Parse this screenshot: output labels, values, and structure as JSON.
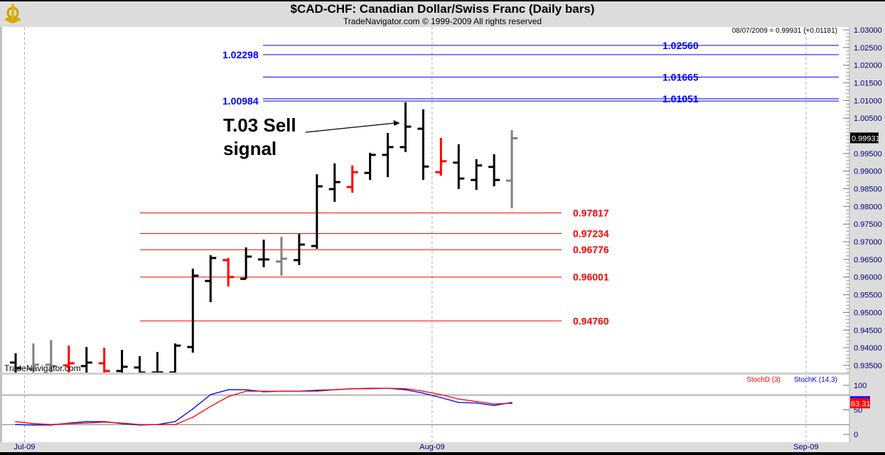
{
  "header": {
    "title": "$CAD-CHF:  Canadian Dollar/Swiss Franc  (Daily bars)",
    "subtitle": "TradeNavigator.com © 1999-2009 All rights reserved",
    "watermark": "TradeNavigator.com",
    "logo": "TradeNavigator"
  },
  "chart_data": [
    {
      "type": "ohlc",
      "readout": "08/07/2009 = 0.99931 (+0.01181)",
      "last_price_label": "0.99931",
      "ylim": [
        0.933,
        1.031
      ],
      "y_ticks": [
        "1.03000",
        "1.02500",
        "1.02000",
        "1.01500",
        "1.01000",
        "1.00500",
        "0.99500",
        "0.99000",
        "0.98500",
        "0.98000",
        "0.97500",
        "0.97000",
        "0.96500",
        "0.96000",
        "0.95500",
        "0.95000",
        "0.94500",
        "0.94000",
        "0.93500"
      ],
      "x_ticks": [
        {
          "label": "Jul-09",
          "at": 0.5
        },
        {
          "label": "Aug-09",
          "at": 23.5
        },
        {
          "label": "Sep-09",
          "at": 44.6
        }
      ],
      "bar_colors": {
        "black": "#000000",
        "red": "#ff0000",
        "gray": "#808080"
      },
      "bars": [
        {
          "o": 0.9358,
          "h": 0.9384,
          "l": 0.932,
          "c": 0.9342,
          "color": "black"
        },
        {
          "o": 0.934,
          "h": 0.9412,
          "l": 0.932,
          "c": 0.9352,
          "color": "gray"
        },
        {
          "o": 0.9352,
          "h": 0.9422,
          "l": 0.932,
          "c": 0.9348,
          "color": "gray"
        },
        {
          "o": 0.935,
          "h": 0.9406,
          "l": 0.932,
          "c": 0.9356,
          "color": "red"
        },
        {
          "o": 0.9348,
          "h": 0.9402,
          "l": 0.932,
          "c": 0.9358,
          "color": "black"
        },
        {
          "o": 0.9356,
          "h": 0.94,
          "l": 0.932,
          "c": 0.9334,
          "color": "red"
        },
        {
          "o": 0.9334,
          "h": 0.9394,
          "l": 0.932,
          "c": 0.9346,
          "color": "black"
        },
        {
          "o": 0.9344,
          "h": 0.9376,
          "l": 0.932,
          "c": 0.9322,
          "color": "black"
        },
        {
          "o": 0.932,
          "h": 0.9388,
          "l": 0.932,
          "c": 0.933,
          "color": "black"
        },
        {
          "o": 0.933,
          "h": 0.9412,
          "l": 0.932,
          "c": 0.9406,
          "color": "black"
        },
        {
          "o": 0.9402,
          "h": 0.9624,
          "l": 0.9386,
          "c": 0.9604,
          "color": "black"
        },
        {
          "o": 0.9589,
          "h": 0.9662,
          "l": 0.9529,
          "c": 0.9654,
          "color": "black"
        },
        {
          "o": 0.9648,
          "h": 0.9654,
          "l": 0.9573,
          "c": 0.96,
          "color": "red"
        },
        {
          "o": 0.9595,
          "h": 0.9684,
          "l": 0.9595,
          "c": 0.9658,
          "color": "black"
        },
        {
          "o": 0.965,
          "h": 0.9706,
          "l": 0.9628,
          "c": 0.965,
          "color": "black"
        },
        {
          "o": 0.9644,
          "h": 0.9714,
          "l": 0.9604,
          "c": 0.9652,
          "color": "gray"
        },
        {
          "o": 0.9648,
          "h": 0.9722,
          "l": 0.9634,
          "c": 0.9692,
          "color": "black"
        },
        {
          "o": 0.9688,
          "h": 0.9891,
          "l": 0.968,
          "c": 0.9857,
          "color": "black"
        },
        {
          "o": 0.9849,
          "h": 0.9922,
          "l": 0.9813,
          "c": 0.9869,
          "color": "black"
        },
        {
          "o": 0.9855,
          "h": 0.9916,
          "l": 0.9839,
          "c": 0.9897,
          "color": "red"
        },
        {
          "o": 0.9895,
          "h": 0.9952,
          "l": 0.9875,
          "c": 0.9946,
          "color": "black"
        },
        {
          "o": 0.9946,
          "h": 1.0008,
          "l": 0.9883,
          "c": 0.9968,
          "color": "black"
        },
        {
          "o": 0.9968,
          "h": 1.0095,
          "l": 0.9954,
          "c": 1.0026,
          "color": "black"
        },
        {
          "o": 1.002,
          "h": 1.0075,
          "l": 0.9875,
          "c": 0.9913,
          "color": "black"
        },
        {
          "o": 0.9897,
          "h": 0.9994,
          "l": 0.9887,
          "c": 0.9928,
          "color": "red"
        },
        {
          "o": 0.9924,
          "h": 0.9976,
          "l": 0.9849,
          "c": 0.9879,
          "color": "black"
        },
        {
          "o": 0.9875,
          "h": 0.9934,
          "l": 0.9847,
          "c": 0.9916,
          "color": "black"
        },
        {
          "o": 0.9912,
          "h": 0.9948,
          "l": 0.9857,
          "c": 0.9875,
          "color": "black"
        },
        {
          "o": 0.9873,
          "h": 1.0016,
          "l": 0.9795,
          "c": 0.99931,
          "color": "gray"
        }
      ],
      "levels": [
        {
          "value": 1.0256,
          "label": "1.02560",
          "color": "#0000ff",
          "side": "right"
        },
        {
          "value": 1.02298,
          "label": "1.02298",
          "color": "#0000ff",
          "side": "left"
        },
        {
          "value": 1.01665,
          "label": "1.01665",
          "color": "#0000ff",
          "side": "right"
        },
        {
          "value": 1.01051,
          "label": "1.01051",
          "color": "#0000ff",
          "side": "right"
        },
        {
          "value": 1.00984,
          "label": "1.00984",
          "color": "#0000ff",
          "side": "left"
        },
        {
          "value": 0.97817,
          "label": "0.97817",
          "color": "#ff0000",
          "side": "right"
        },
        {
          "value": 0.97234,
          "label": "0.97234",
          "color": "#ff0000",
          "side": "right"
        },
        {
          "value": 0.96776,
          "label": "0.96776",
          "color": "#ff0000",
          "side": "right"
        },
        {
          "value": 0.96001,
          "label": "0.96001",
          "color": "#ff0000",
          "side": "right"
        },
        {
          "value": 0.9476,
          "label": "0.94760",
          "color": "#ff0000",
          "side": "right"
        }
      ],
      "annotation": {
        "line1": "T.03 Sell",
        "line2": "signal",
        "points_to_bar": 22
      }
    },
    {
      "type": "line",
      "ylim": [
        0,
        100
      ],
      "y_ticks": [
        "100",
        "50",
        "0"
      ],
      "ref_lines": [
        20,
        80
      ],
      "last_value_label": "63.31",
      "series": [
        {
          "name": "StochD (3)",
          "color": "#ff0000",
          "values": [
            26,
            22,
            20,
            22,
            23,
            25,
            23,
            20,
            20,
            20,
            35,
            57,
            77,
            88,
            88,
            88,
            88,
            88,
            91,
            93,
            93,
            94,
            93,
            88,
            81,
            72,
            67,
            62,
            63.31
          ]
        },
        {
          "name": "StochK (14,3)",
          "color": "#0000ff",
          "values": [
            20,
            19,
            19,
            23,
            26,
            26,
            22,
            19,
            20,
            26,
            52,
            81,
            91,
            91,
            87,
            88,
            88,
            90,
            91,
            93,
            94,
            94,
            91,
            84,
            75,
            65,
            64,
            59,
            65
          ]
        }
      ]
    }
  ]
}
